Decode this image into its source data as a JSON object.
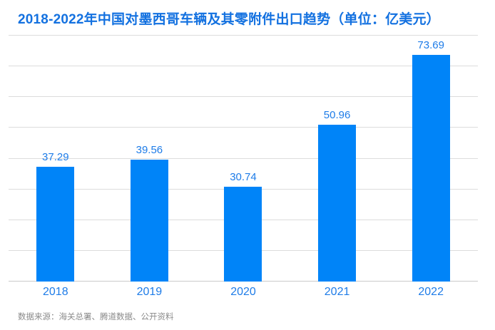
{
  "title": "2018-2022年中国对墨西哥车辆及其零附件出口趋势（单位：亿美元）",
  "source_note": "数据来源：海关总署、腾道数据、公开资料",
  "colors": {
    "bar": "#0084f8",
    "title": "#1371e0",
    "label": "#1e7ce8",
    "grid": "#dcdcdc",
    "baseline": "#c9c9c9",
    "source": "#8a8a8a"
  },
  "chart_data": {
    "type": "bar",
    "categories": [
      "2018",
      "2019",
      "2020",
      "2021",
      "2022"
    ],
    "values": [
      37.29,
      39.56,
      30.74,
      50.96,
      73.69
    ],
    "title": "2018-2022年中国对墨西哥车辆及其零附件出口趋势",
    "unit": "亿美元",
    "xlabel": "",
    "ylabel": "",
    "ylim": [
      0,
      80
    ],
    "gridline_step": 10,
    "grid": true,
    "legend_position": "none",
    "value_labels": true
  }
}
